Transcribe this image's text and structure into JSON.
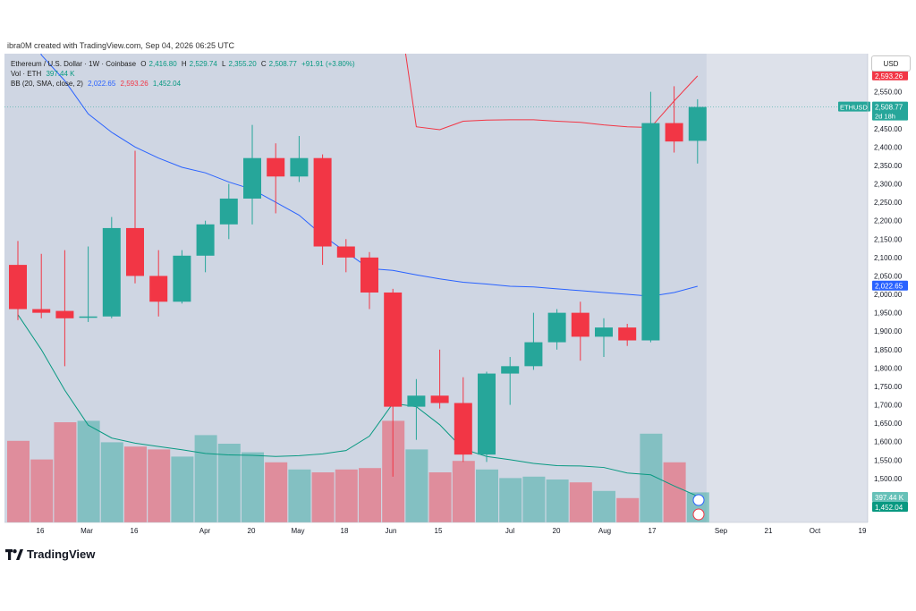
{
  "attribution": "ibra0M created with TradingView.com, Sep 04, 2026 06:25 UTC",
  "currency_button": "USD",
  "brand": "TradingView",
  "legend": {
    "symbol": "Ethereum / U.S. Dollar · 1W · Coinbase",
    "open_label": "O",
    "open": "2,416.80",
    "high_label": "H",
    "high": "2,529.74",
    "low_label": "L",
    "low": "2,355.20",
    "close_label": "C",
    "close": "2,508.77",
    "change": "+91.91 (+3.80%)",
    "vol_label": "Vol · ETH",
    "vol_value": "397.44 K",
    "bb_label": "BB (20, SMA, close, 2)",
    "bb_basis": "2,022.65",
    "bb_upper": "2,593.26",
    "bb_lower": "1,452.04"
  },
  "price_tags": {
    "symbol_tag": "ETHUSD",
    "price": "2,508.77",
    "countdown": "2d 18h",
    "bb_upper": "2,593.26",
    "bb_basis": "2,022.65",
    "vol": "397.44 K",
    "bb_lower": "1,452.04"
  },
  "colors": {
    "up": "#26a69a",
    "down": "#f23645",
    "basis": "#2962ff",
    "upper": "#f23645",
    "lower": "#089981",
    "bg_band": "#c9d2e0",
    "bg": "#dde1ea"
  },
  "chart_data": {
    "type": "candlestick",
    "ylim": [
      1450,
      2600
    ],
    "y_ticks": [
      "1,500.00",
      "1,550.00",
      "1,600.00",
      "1,650.00",
      "1,700.00",
      "1,750.00",
      "1,800.00",
      "1,850.00",
      "1,900.00",
      "1,950.00",
      "2,000.00",
      "2,050.00",
      "2,100.00",
      "2,150.00",
      "2,200.00",
      "2,250.00",
      "2,300.00",
      "2,350.00",
      "2,400.00",
      "2,450.00",
      "2,500.00",
      "2,550.00"
    ],
    "x_ticks": [
      "16",
      "Mar",
      "16",
      "Apr",
      "20",
      "May",
      "18",
      "Jun",
      "15",
      "Jul",
      "20",
      "Aug",
      "17",
      "Sep",
      "21",
      "Oct",
      "19"
    ],
    "candles": [
      {
        "o": 2080,
        "h": 2145,
        "l": 1930,
        "c": 1960,
        "v": 57
      },
      {
        "o": 1960,
        "h": 2110,
        "l": 1935,
        "c": 1950,
        "v": 44
      },
      {
        "o": 1955,
        "h": 2120,
        "l": 1805,
        "c": 1935,
        "v": 70
      },
      {
        "o": 1937,
        "h": 2130,
        "l": 1925,
        "c": 1940,
        "v": 71
      },
      {
        "o": 1940,
        "h": 2210,
        "l": 1935,
        "c": 2180,
        "v": 56
      },
      {
        "o": 2180,
        "h": 2390,
        "l": 2030,
        "c": 2050,
        "v": 53
      },
      {
        "o": 2050,
        "h": 2120,
        "l": 1940,
        "c": 1980,
        "v": 51
      },
      {
        "o": 1980,
        "h": 2120,
        "l": 1975,
        "c": 2105,
        "v": 46
      },
      {
        "o": 2105,
        "h": 2200,
        "l": 2060,
        "c": 2190,
        "v": 61
      },
      {
        "o": 2190,
        "h": 2300,
        "l": 2150,
        "c": 2260,
        "v": 55
      },
      {
        "o": 2260,
        "h": 2460,
        "l": 2190,
        "c": 2370,
        "v": 49
      },
      {
        "o": 2370,
        "h": 2410,
        "l": 2220,
        "c": 2320,
        "v": 42
      },
      {
        "o": 2320,
        "h": 2430,
        "l": 2305,
        "c": 2370,
        "v": 37
      },
      {
        "o": 2370,
        "h": 2380,
        "l": 2080,
        "c": 2130,
        "v": 35
      },
      {
        "o": 2130,
        "h": 2150,
        "l": 2060,
        "c": 2100,
        "v": 37
      },
      {
        "o": 2100,
        "h": 2115,
        "l": 1960,
        "c": 2005,
        "v": 38
      },
      {
        "o": 2005,
        "h": 2015,
        "l": 1505,
        "c": 1695,
        "v": 71
      },
      {
        "o": 1695,
        "h": 1770,
        "l": 1605,
        "c": 1725,
        "v": 51
      },
      {
        "o": 1725,
        "h": 1850,
        "l": 1690,
        "c": 1705,
        "v": 35
      },
      {
        "o": 1705,
        "h": 1775,
        "l": 1545,
        "c": 1565,
        "v": 43
      },
      {
        "o": 1565,
        "h": 1790,
        "l": 1545,
        "c": 1785,
        "v": 37
      },
      {
        "o": 1785,
        "h": 1830,
        "l": 1700,
        "c": 1805,
        "v": 31
      },
      {
        "o": 1805,
        "h": 1950,
        "l": 1795,
        "c": 1870,
        "v": 32
      },
      {
        "o": 1870,
        "h": 1960,
        "l": 1850,
        "c": 1950,
        "v": 30
      },
      {
        "o": 1950,
        "h": 1980,
        "l": 1820,
        "c": 1885,
        "v": 28
      },
      {
        "o": 1885,
        "h": 1935,
        "l": 1830,
        "c": 1910,
        "v": 22
      },
      {
        "o": 1910,
        "h": 1920,
        "l": 1860,
        "c": 1875,
        "v": 17
      },
      {
        "o": 1875,
        "h": 2550,
        "l": 1870,
        "c": 2465,
        "v": 62
      },
      {
        "o": 2465,
        "h": 2565,
        "l": 2385,
        "c": 2415,
        "v": 42
      },
      {
        "o": 2416.8,
        "h": 2529.74,
        "l": 2355.2,
        "c": 2508.77,
        "v": 21
      }
    ],
    "bb_upper": [
      null,
      null,
      null,
      null,
      null,
      null,
      null,
      null,
      null,
      null,
      null,
      null,
      null,
      null,
      null,
      null,
      2890,
      2455,
      2447,
      2470,
      2473,
      2474,
      2474,
      2470,
      2467,
      2460,
      2455,
      2453,
      2525,
      2593
    ],
    "bb_basis": [
      2890,
      2650,
      2580,
      2490,
      2440,
      2400,
      2370,
      2345,
      2330,
      2305,
      2285,
      2250,
      2215,
      2160,
      2115,
      2070,
      2065,
      2053,
      2042,
      2033,
      2028,
      2022,
      2020,
      2015,
      2010,
      2005,
      2000,
      1995,
      2005,
      2022
    ],
    "bb_lower": [
      1945,
      1850,
      1740,
      1645,
      1610,
      1596,
      1587,
      1578,
      1568,
      1564,
      1563,
      1560,
      1562,
      1567,
      1576,
      1615,
      1704,
      1695,
      1646,
      1580,
      1560,
      1551,
      1541,
      1535,
      1534,
      1530,
      1515,
      1510,
      1480,
      1452
    ]
  }
}
